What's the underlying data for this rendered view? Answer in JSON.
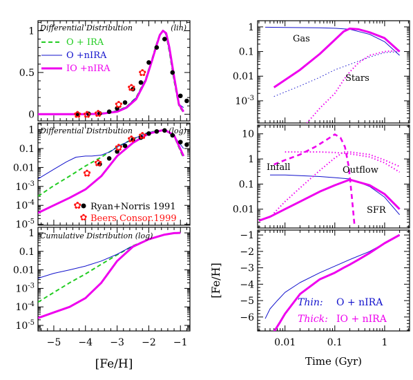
{
  "colors": {
    "green": "#22cc22",
    "blue": "#1111cc",
    "magenta": "#ee00ee",
    "black": "#000000",
    "red": "#ff1111"
  },
  "left": {
    "xlabel": "[Fe/H]",
    "xlim": [
      -5.5,
      -0.7
    ],
    "xticks": [
      {
        "v": -5,
        "t": "−5"
      },
      {
        "v": -4,
        "t": "−4"
      },
      {
        "v": -3,
        "t": "−3"
      },
      {
        "v": -2,
        "t": "−2"
      },
      {
        "v": -1,
        "t": "−1"
      }
    ],
    "lin": {
      "title": "Differential Distribution",
      "scale": "(lin)",
      "ylim": [
        -0.08,
        1.12
      ],
      "yticks": [
        {
          "v": 0,
          "t": "0"
        },
        {
          "v": 0.5,
          "t": "0.5"
        },
        {
          "v": 1,
          "t": "1"
        }
      ]
    },
    "log": {
      "title": "Differential Distribution",
      "scale": "(log)",
      "ylim": [
        -5.05,
        0.35
      ],
      "yticks": [
        {
          "e": 0,
          "b": "1"
        },
        {
          "e": -1,
          "b": "0.1"
        },
        {
          "e": -2,
          "b": "0.01"
        },
        {
          "e": -3,
          "b": "10",
          "p": "-3"
        },
        {
          "e": -4,
          "b": "10",
          "p": "-4"
        },
        {
          "e": -5,
          "b": "10",
          "p": "-5"
        }
      ],
      "data_labels": [
        "Ryan+Norris 1991",
        "Beers Consor.1999"
      ]
    },
    "cum": {
      "title": "Cumulative Distribution (log)",
      "ylim": [
        -5.3,
        0.3
      ],
      "yticks": [
        {
          "e": 0,
          "b": "1"
        },
        {
          "e": -1,
          "b": "0.1"
        },
        {
          "e": -2,
          "b": "0.01"
        },
        {
          "e": -3,
          "b": "10",
          "p": "-3"
        },
        {
          "e": -4,
          "b": "10",
          "p": "-4"
        },
        {
          "e": -5,
          "b": "10",
          "p": "-5"
        }
      ]
    },
    "legend": [
      {
        "label": "O  + IRA",
        "color": "#22cc22",
        "style": "dash"
      },
      {
        "label": "O  +nIRA",
        "color": "#1111cc",
        "style": "thin"
      },
      {
        "label": "IO +nIRA",
        "color": "#ee00ee",
        "style": "thick"
      }
    ]
  },
  "right": {
    "xlabel": "Time (Gyr)",
    "ylabel": "[Fe/H]",
    "xlim_log": [
      -2.55,
      0.5
    ],
    "xticks": [
      {
        "e": -2,
        "t": "0.01"
      },
      {
        "e": -1,
        "t": "0.1"
      },
      {
        "e": 0,
        "t": "1"
      }
    ],
    "top": {
      "ylim": [
        -3.9,
        0.25
      ],
      "yticks": [
        {
          "e": 0,
          "b": "1"
        },
        {
          "e": -1,
          "b": "0.1"
        },
        {
          "e": -2,
          "b": "0.01"
        },
        {
          "e": -3,
          "b": "10",
          "p": "-3"
        }
      ],
      "labels": [
        "Gas",
        "Stars"
      ]
    },
    "mid": {
      "ylim": [
        -2.75,
        1.35
      ],
      "yticks": [
        {
          "e": 1,
          "b": "10"
        },
        {
          "e": 0,
          "b": "1"
        },
        {
          "e": -1,
          "b": "0.1"
        },
        {
          "e": -2,
          "b": "0.01"
        }
      ],
      "labels": [
        "Infall",
        "Outflow",
        "SFR"
      ]
    },
    "bot": {
      "ylim": [
        -6.85,
        -0.7
      ],
      "yticks": [
        {
          "v": -1,
          "t": "−1"
        },
        {
          "v": -2,
          "t": "−2"
        },
        {
          "v": -3,
          "t": "−3"
        },
        {
          "v": -4,
          "t": "−4"
        },
        {
          "v": -5,
          "t": "−5"
        },
        {
          "v": -6,
          "t": "−6"
        }
      ],
      "legend": [
        {
          "name": "Thin:",
          "label": "O + nIRA",
          "color": "#1111cc"
        },
        {
          "name": "Thick:",
          "label": "IO + nIRA",
          "color": "#ee00ee"
        }
      ]
    }
  },
  "chart_data": [
    {
      "type": "line",
      "panel": "differential-lin",
      "series": [
        {
          "name": "O  + IRA",
          "x": [
            -5.5,
            -4.5,
            -4,
            -3.5,
            -3,
            -2.7,
            -2.4,
            -2.1,
            -1.9,
            -1.75,
            -1.65,
            -1.55,
            -1.45,
            -1.35,
            -1.2,
            -1.05,
            -0.9
          ],
          "y": [
            0,
            0,
            0.002,
            0.01,
            0.04,
            0.09,
            0.2,
            0.42,
            0.66,
            0.85,
            0.96,
            1.0,
            0.95,
            0.75,
            0.4,
            0.1,
            0.02
          ]
        },
        {
          "name": "O  +nIRA",
          "x": [
            -5.5,
            -4.5,
            -4,
            -3.5,
            -3,
            -2.7,
            -2.4,
            -2.1,
            -1.9,
            -1.75,
            -1.65,
            -1.55,
            -1.45,
            -1.35,
            -1.2,
            -1.05,
            -0.9
          ],
          "y": [
            0,
            0.003,
            0.006,
            0.012,
            0.04,
            0.09,
            0.2,
            0.42,
            0.66,
            0.85,
            0.96,
            1.0,
            0.95,
            0.75,
            0.4,
            0.12,
            0.08
          ]
        },
        {
          "name": "IO +nIRA",
          "x": [
            -5.5,
            -4.5,
            -4,
            -3.5,
            -3,
            -2.7,
            -2.4,
            -2.1,
            -1.9,
            -1.75,
            -1.65,
            -1.55,
            -1.45,
            -1.35,
            -1.2,
            -1.05,
            -0.9
          ],
          "y": [
            0,
            0,
            0.001,
            0.005,
            0.03,
            0.08,
            0.18,
            0.4,
            0.64,
            0.83,
            0.95,
            1.0,
            0.97,
            0.8,
            0.45,
            0.12,
            0.03
          ]
        }
      ],
      "points": [
        {
          "name": "Ryan+Norris 1991",
          "x": [
            -4.25,
            -3.9,
            -3.55,
            -3.25,
            -3.0,
            -2.75,
            -2.5,
            -2.25,
            -2.0,
            -1.75,
            -1.5,
            -1.25,
            -1.0,
            -0.8
          ],
          "y": [
            0.005,
            0.005,
            0.01,
            0.03,
            0.07,
            0.14,
            0.3,
            0.38,
            0.62,
            0.8,
            0.9,
            0.5,
            0.22,
            0.16
          ]
        },
        {
          "name": "Beers Consor.1999",
          "x": [
            -4.25,
            -3.95,
            -3.6,
            -2.95,
            -2.55,
            -2.2
          ],
          "y": [
            0.0,
            0.0,
            0.01,
            0.12,
            0.32,
            0.5
          ]
        }
      ]
    },
    {
      "type": "line",
      "panel": "differential-log",
      "series": [
        {
          "name": "O  + IRA",
          "x": [
            -5.5,
            -5,
            -4.5,
            -4,
            -3.5,
            -3,
            -2.5,
            -2,
            -1.5,
            -1.2,
            -0.9
          ],
          "y": [
            0.0003,
            0.0011,
            0.0035,
            0.012,
            0.035,
            0.12,
            0.32,
            0.72,
            0.95,
            0.45,
            0.03
          ]
        },
        {
          "name": "O  +nIRA",
          "x": [
            -5.5,
            -5,
            -4.6,
            -4.3,
            -4.0,
            -3.8,
            -3.5,
            -3.2,
            -3,
            -2.5,
            -2,
            -1.5,
            -1.2,
            -0.9
          ],
          "y": [
            0.0025,
            0.008,
            0.02,
            0.035,
            0.04,
            0.04,
            0.045,
            0.07,
            0.12,
            0.32,
            0.72,
            0.95,
            0.45,
            0.1
          ]
        },
        {
          "name": "IO +nIRA",
          "x": [
            -5.5,
            -5,
            -4.5,
            -4,
            -3.5,
            -3.2,
            -3,
            -2.5,
            -2,
            -1.5,
            -1.2,
            -0.9
          ],
          "y": [
            4e-05,
            0.0001,
            0.00025,
            0.0007,
            0.0035,
            0.015,
            0.04,
            0.2,
            0.62,
            0.98,
            0.5,
            0.04
          ]
        }
      ],
      "points": [
        {
          "name": "Ryan+Norris 1991",
          "x": [
            -3.55,
            -3.25,
            -3.0,
            -2.75,
            -2.5,
            -2.25,
            -2.0,
            -1.75,
            -1.5,
            -1.25,
            -1.0,
            -0.8
          ],
          "y": [
            0.015,
            0.03,
            0.07,
            0.14,
            0.3,
            0.38,
            0.62,
            0.8,
            0.9,
            0.5,
            0.22,
            0.16
          ]
        },
        {
          "name": "Beers Consor.1999",
          "x": [
            -4.25,
            -3.95,
            -3.6,
            -2.95,
            -2.55,
            -2.2
          ],
          "y": [
            0.0001,
            0.005,
            0.018,
            0.12,
            0.32,
            0.5
          ]
        }
      ]
    },
    {
      "type": "line",
      "panel": "cumulative-log",
      "series": [
        {
          "name": "O  + IRA",
          "x": [
            -5.5,
            -5,
            -4.5,
            -4,
            -3.5,
            -3,
            -2.5,
            -2,
            -1.5,
            -1.2,
            -1.0
          ],
          "y": [
            0.00018,
            0.0006,
            0.002,
            0.006,
            0.02,
            0.065,
            0.2,
            0.45,
            0.8,
            0.97,
            1.0
          ]
        },
        {
          "name": "O  +nIRA",
          "x": [
            -5.5,
            -5,
            -4.5,
            -4,
            -3.5,
            -3,
            -2.5,
            -2,
            -1.5,
            -1.2,
            -1.0
          ],
          "y": [
            0.0035,
            0.0065,
            0.01,
            0.016,
            0.03,
            0.07,
            0.2,
            0.45,
            0.8,
            0.97,
            1.0
          ]
        },
        {
          "name": "IO +nIRA",
          "x": [
            -5.5,
            -5,
            -4.5,
            -4,
            -3.5,
            -3,
            -2.5,
            -2,
            -1.5,
            -1.2,
            -1.0
          ],
          "y": [
            2.5e-05,
            5e-05,
            0.0001,
            0.0003,
            0.002,
            0.03,
            0.18,
            0.45,
            0.8,
            0.97,
            1.0
          ]
        }
      ]
    },
    {
      "type": "line",
      "panel": "gas-stars",
      "xscale": "log",
      "series": [
        {
          "name": "Gas",
          "x": [
            0.004,
            0.01,
            0.05,
            0.1,
            0.2,
            0.5,
            1.0,
            2.0
          ],
          "y": [
            0.97,
            0.95,
            0.92,
            0.88,
            0.8,
            0.5,
            0.25,
            0.07
          ]
        },
        {
          "name": "Stars",
          "x": [
            0.006,
            0.02,
            0.05,
            0.1,
            0.2,
            0.5,
            1.0,
            2.0
          ],
          "y": [
            0.0015,
            0.004,
            0.009,
            0.018,
            0.03,
            0.06,
            0.09,
            0.1
          ]
        },
        {
          "x": [
            0.006,
            0.02,
            0.05,
            0.1,
            0.15,
            0.2,
            0.3,
            0.5,
            1.0,
            2.0
          ],
          "y": [
            0.0035,
            0.018,
            0.08,
            0.3,
            0.65,
            0.85,
            0.8,
            0.6,
            0.35,
            0.1
          ]
        },
        {
          "x": [
            0.025,
            0.05,
            0.1,
            0.15,
            0.2,
            0.3,
            0.5,
            1.0,
            2.0
          ],
          "y": [
            0.0001,
            0.0005,
            0.002,
            0.007,
            0.015,
            0.035,
            0.07,
            0.1,
            0.11
          ]
        }
      ]
    },
    {
      "type": "line",
      "panel": "infall-outflow-sfr",
      "xscale": "log",
      "series": [
        {
          "name": "SFR",
          "x": [
            0.005,
            0.01,
            0.05,
            0.1,
            0.2,
            0.5,
            1.0,
            2.0
          ],
          "y": [
            0.23,
            0.23,
            0.2,
            0.18,
            0.16,
            0.08,
            0.03,
            0.006
          ]
        },
        {
          "x": [
            0.003,
            0.005,
            0.01,
            0.02,
            0.05,
            0.1,
            0.2,
            0.5,
            1.0,
            2.0
          ],
          "y": [
            0.0035,
            0.005,
            0.01,
            0.02,
            0.05,
            0.09,
            0.15,
            0.09,
            0.04,
            0.01
          ]
        },
        {
          "name": "Infall",
          "x": [
            0.006,
            0.01,
            0.02,
            0.04,
            0.07,
            0.1,
            0.13,
            0.16,
            0.19,
            0.22,
            0.25
          ],
          "y": [
            0.6,
            0.9,
            1.5,
            3,
            6,
            9.5,
            7,
            3,
            0.5,
            0.03,
            0.002
          ]
        },
        {
          "name": "Outflow",
          "x": [
            0.01,
            0.05,
            0.1,
            0.2,
            0.5,
            1.0,
            2.0
          ],
          "y": [
            1.9,
            1.9,
            1.8,
            1.6,
            1.2,
            0.7,
            0.3
          ]
        },
        {
          "x": [
            0.006,
            0.01,
            0.02,
            0.05,
            0.1,
            0.15,
            0.2,
            0.5,
            1.0,
            2.0
          ],
          "y": [
            0.007,
            0.02,
            0.07,
            0.35,
            1.1,
            1.9,
            1.9,
            1.5,
            0.9,
            0.5
          ]
        }
      ]
    },
    {
      "type": "line",
      "panel": "fe-h-vs-time",
      "xscale": "log",
      "series": [
        {
          "name": "Thin:",
          "x": [
            0.004,
            0.005,
            0.007,
            0.01,
            0.02,
            0.05,
            0.1,
            0.2,
            0.5,
            1.0,
            2.0
          ],
          "y": [
            -6.1,
            -5.5,
            -5.0,
            -4.5,
            -3.9,
            -3.3,
            -2.9,
            -2.5,
            -2.0,
            -1.5,
            -1.0
          ]
        },
        {
          "name": "Thick:",
          "x": [
            0.006,
            0.008,
            0.01,
            0.02,
            0.05,
            0.1,
            0.15,
            0.2,
            0.3,
            0.5,
            1.0,
            2.0
          ],
          "y": [
            -6.9,
            -6.3,
            -5.8,
            -4.6,
            -3.7,
            -3.3,
            -3.0,
            -2.8,
            -2.5,
            -2.1,
            -1.5,
            -1.0
          ]
        }
      ]
    }
  ]
}
